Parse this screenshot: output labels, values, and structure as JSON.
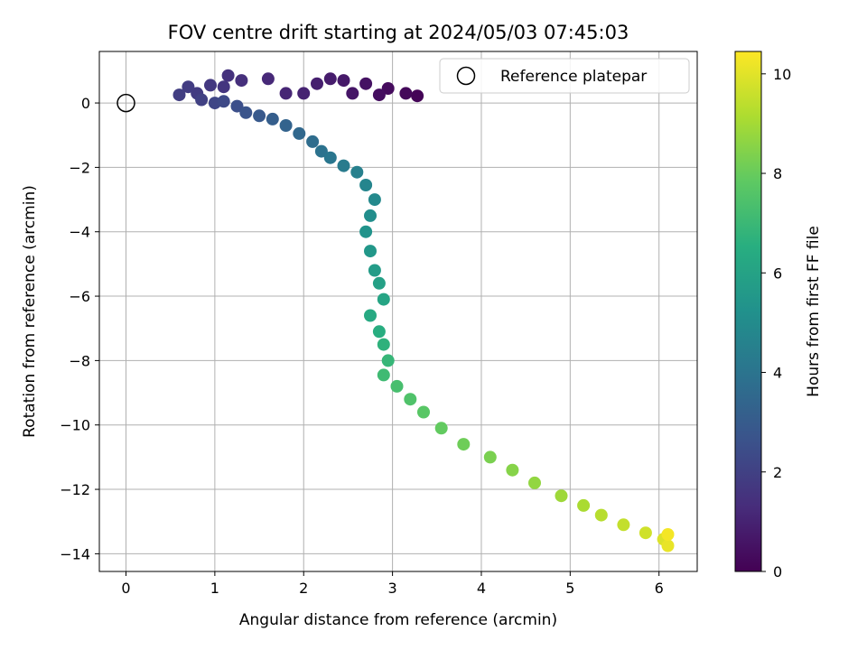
{
  "chart_data": {
    "type": "scatter",
    "title": "FOV centre drift starting at 2024/05/03 07:45:03",
    "xlabel": "Angular distance from reference (arcmin)",
    "ylabel": "Rotation from reference (arcmin)",
    "xlim": [
      -0.3,
      6.43
    ],
    "ylim": [
      -14.55,
      1.6
    ],
    "x_ticks": [
      0,
      1,
      2,
      3,
      4,
      5,
      6
    ],
    "y_ticks": [
      0,
      -2,
      -4,
      -6,
      -8,
      -10,
      -12,
      -14
    ],
    "grid": true,
    "legend": {
      "position": "top-right",
      "entries": [
        "Reference platepar"
      ]
    },
    "reference_point": {
      "x": 0,
      "y": 0
    },
    "colorbar": {
      "label": "Hours from first FF file",
      "range": [
        0,
        10.45
      ],
      "ticks": [
        0,
        2,
        4,
        6,
        8,
        10
      ],
      "colormap": "viridis"
    },
    "series": [
      {
        "points": [
          [
            3.28,
            0.22,
            0.1
          ],
          [
            3.15,
            0.3,
            0.2
          ],
          [
            2.95,
            0.45,
            0.3
          ],
          [
            2.85,
            0.25,
            0.4
          ],
          [
            2.7,
            0.6,
            0.5
          ],
          [
            2.55,
            0.3,
            0.6
          ],
          [
            2.45,
            0.7,
            0.7
          ],
          [
            2.3,
            0.75,
            0.8
          ],
          [
            2.15,
            0.6,
            0.9
          ],
          [
            2.0,
            0.3,
            1.0
          ],
          [
            1.8,
            0.3,
            1.1
          ],
          [
            1.6,
            0.75,
            1.2
          ],
          [
            1.3,
            0.7,
            1.4
          ],
          [
            1.15,
            0.85,
            1.5
          ],
          [
            1.1,
            0.5,
            1.6
          ],
          [
            0.95,
            0.55,
            1.7
          ],
          [
            0.8,
            0.3,
            1.8
          ],
          [
            0.7,
            0.5,
            1.85
          ],
          [
            0.6,
            0.25,
            1.9
          ],
          [
            0.85,
            0.1,
            2.0
          ],
          [
            1.0,
            0.0,
            2.2
          ],
          [
            1.1,
            0.05,
            2.3
          ],
          [
            1.25,
            -0.1,
            2.5
          ],
          [
            1.35,
            -0.3,
            2.7
          ],
          [
            1.5,
            -0.4,
            2.9
          ],
          [
            1.65,
            -0.5,
            3.1
          ],
          [
            1.8,
            -0.7,
            3.3
          ],
          [
            1.95,
            -0.95,
            3.5
          ],
          [
            2.1,
            -1.2,
            3.7
          ],
          [
            2.2,
            -1.5,
            3.9
          ],
          [
            2.3,
            -1.7,
            4.1
          ],
          [
            2.45,
            -1.95,
            4.3
          ],
          [
            2.6,
            -2.15,
            4.5
          ],
          [
            2.7,
            -2.55,
            4.7
          ],
          [
            2.8,
            -3.0,
            4.9
          ],
          [
            2.75,
            -3.5,
            5.1
          ],
          [
            2.7,
            -4.0,
            5.3
          ],
          [
            2.75,
            -4.6,
            5.5
          ],
          [
            2.8,
            -5.2,
            5.7
          ],
          [
            2.85,
            -5.6,
            5.9
          ],
          [
            2.9,
            -6.1,
            6.1
          ],
          [
            2.75,
            -6.6,
            6.3
          ],
          [
            2.85,
            -7.1,
            6.5
          ],
          [
            2.9,
            -7.5,
            6.7
          ],
          [
            2.95,
            -8.0,
            6.9
          ],
          [
            2.9,
            -8.45,
            7.1
          ],
          [
            3.05,
            -8.8,
            7.3
          ],
          [
            3.2,
            -9.2,
            7.5
          ],
          [
            3.35,
            -9.6,
            7.7
          ],
          [
            3.55,
            -10.1,
            7.9
          ],
          [
            3.8,
            -10.6,
            8.1
          ],
          [
            4.1,
            -11.0,
            8.3
          ],
          [
            4.35,
            -11.4,
            8.5
          ],
          [
            4.6,
            -11.8,
            8.7
          ],
          [
            4.9,
            -12.2,
            8.9
          ],
          [
            5.15,
            -12.5,
            9.1
          ],
          [
            5.35,
            -12.8,
            9.3
          ],
          [
            5.6,
            -13.1,
            9.5
          ],
          [
            5.85,
            -13.35,
            9.7
          ],
          [
            6.05,
            -13.55,
            9.9
          ],
          [
            6.1,
            -13.75,
            10.1
          ],
          [
            6.1,
            -13.4,
            10.3
          ]
        ]
      }
    ]
  }
}
